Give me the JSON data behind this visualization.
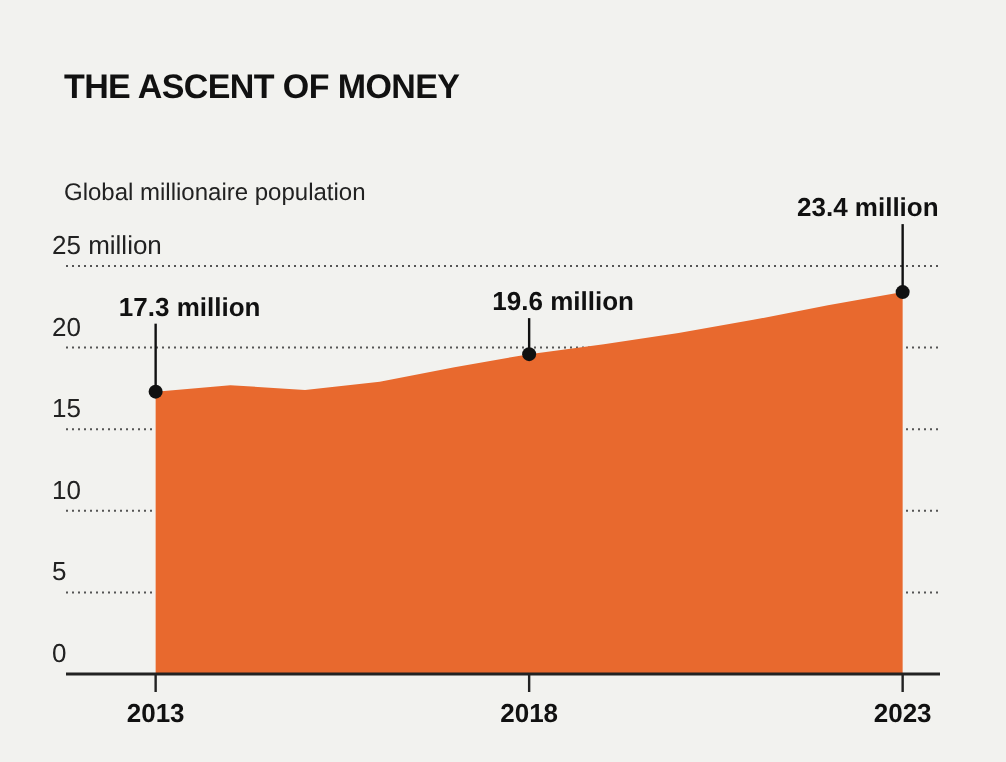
{
  "chart_data": {
    "type": "area",
    "title": "THE ASCENT OF MONEY",
    "ylabel": "Global millionaire population",
    "x": [
      2013,
      2014,
      2015,
      2016,
      2017,
      2018,
      2019,
      2020,
      2021,
      2022,
      2023
    ],
    "values": [
      17.3,
      17.7,
      17.4,
      17.9,
      18.8,
      19.6,
      20.2,
      20.9,
      21.7,
      22.6,
      23.4
    ],
    "color": "#e8692e",
    "xlim": [
      2011.8,
      2023.5
    ],
    "xticks": [
      2013,
      2018,
      2023
    ],
    "ylim": [
      0,
      25
    ],
    "yticks": [
      0,
      5,
      10,
      15,
      20,
      {
        "value": 25,
        "label": "25 million"
      }
    ],
    "grid": "y",
    "annotations": [
      {
        "text": "17.3 million",
        "x": 2013,
        "y": 17.3
      },
      {
        "text": "19.6 million",
        "x": 2018,
        "y": 19.6
      },
      {
        "text": "23.4 million",
        "x": 2023,
        "y": 23.4
      }
    ]
  }
}
